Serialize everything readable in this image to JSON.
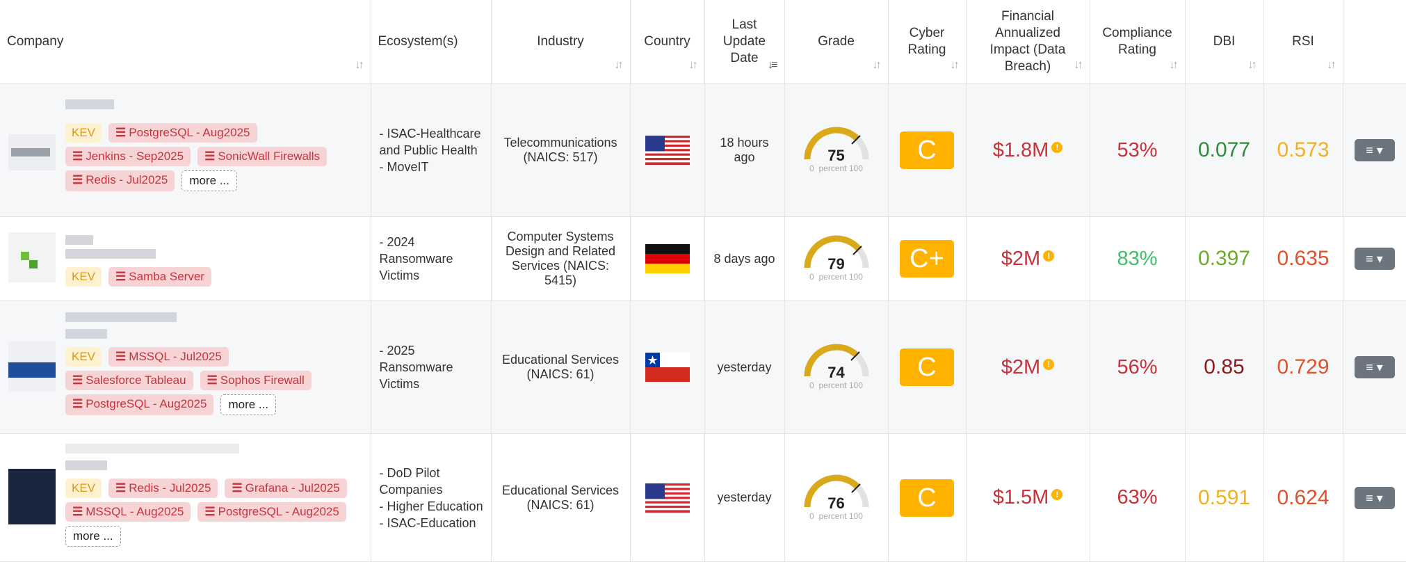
{
  "headers": {
    "company": "Company",
    "ecosystem": "Ecosystem(s)",
    "industry": "Industry",
    "country": "Country",
    "last_update_l1": "Last",
    "last_update_l2": "Update",
    "last_update_l3": "Date",
    "grade": "Grade",
    "cyber_l1": "Cyber",
    "cyber_l2": "Rating",
    "fin_l1": "Financial",
    "fin_l2": "Annualized",
    "fin_l3": "Impact (Data",
    "fin_l4": "Breach)",
    "comp_l1": "Compliance",
    "comp_l2": "Rating",
    "dbi": "DBI",
    "rsi": "RSI"
  },
  "common": {
    "kev": "KEV",
    "more": "more ...",
    "gauge_min": "0",
    "gauge_unit": "percent",
    "gauge_max": "100",
    "menu_icon": "≡ ▾"
  },
  "rows": [
    {
      "tags": [
        "PostgreSQL - Aug2025",
        "Jenkins - Sep2025",
        "SonicWall Firewalls",
        "Redis - Jul2025"
      ],
      "eco": [
        "- ISAC-Healthcare and Public Health",
        "- MoveIT"
      ],
      "industry": "Telecommunications (NAICS: 517)",
      "country": "United States",
      "updated": "18 hours ago",
      "grade": "75",
      "cyber": "C",
      "fin": "$1.8M",
      "fin_color": "#c8323b",
      "comp": "53%",
      "comp_color": "#c8323b",
      "dbi": "0.077",
      "dbi_color": "#2e8b3e",
      "rsi": "0.573",
      "rsi_color": "#f0b020"
    },
    {
      "tags": [
        "Samba Server"
      ],
      "eco": [
        "- 2024 Ransomware Victims"
      ],
      "industry": "Computer Systems Design and Related Services (NAICS: 5415)",
      "country": "Germany",
      "updated": "8 days ago",
      "grade": "79",
      "cyber": "C+",
      "fin": "$2M",
      "fin_color": "#c8323b",
      "comp": "83%",
      "comp_color": "#3fbf6a",
      "dbi": "0.397",
      "dbi_color": "#6aaa2a",
      "rsi": "0.635",
      "rsi_color": "#e0502a"
    },
    {
      "tags": [
        "MSSQL - Jul2025",
        "Salesforce Tableau",
        "Sophos Firewall",
        "PostgreSQL - Aug2025"
      ],
      "eco": [
        "- 2025 Ransomware Victims"
      ],
      "industry": "Educational Services (NAICS: 61)",
      "country": "Chile",
      "updated": "yesterday",
      "grade": "74",
      "cyber": "C",
      "fin": "$2M",
      "fin_color": "#c8323b",
      "comp": "56%",
      "comp_color": "#c8323b",
      "dbi": "0.85",
      "dbi_color": "#8b1a1a",
      "rsi": "0.729",
      "rsi_color": "#e0502a"
    },
    {
      "tags": [
        "Redis - Jul2025",
        "Grafana - Jul2025",
        "MSSQL - Aug2025",
        "PostgreSQL - Aug2025"
      ],
      "eco": [
        "- DoD Pilot Companies",
        "- Higher Education",
        "- ISAC-Education"
      ],
      "industry": "Educational Services (NAICS: 61)",
      "country": "United States",
      "updated": "yesterday",
      "grade": "76",
      "cyber": "C",
      "fin": "$1.5M",
      "fin_color": "#c8323b",
      "comp": "63%",
      "comp_color": "#c8323b",
      "dbi": "0.591",
      "dbi_color": "#f0b020",
      "rsi": "0.624",
      "rsi_color": "#e0502a"
    }
  ]
}
